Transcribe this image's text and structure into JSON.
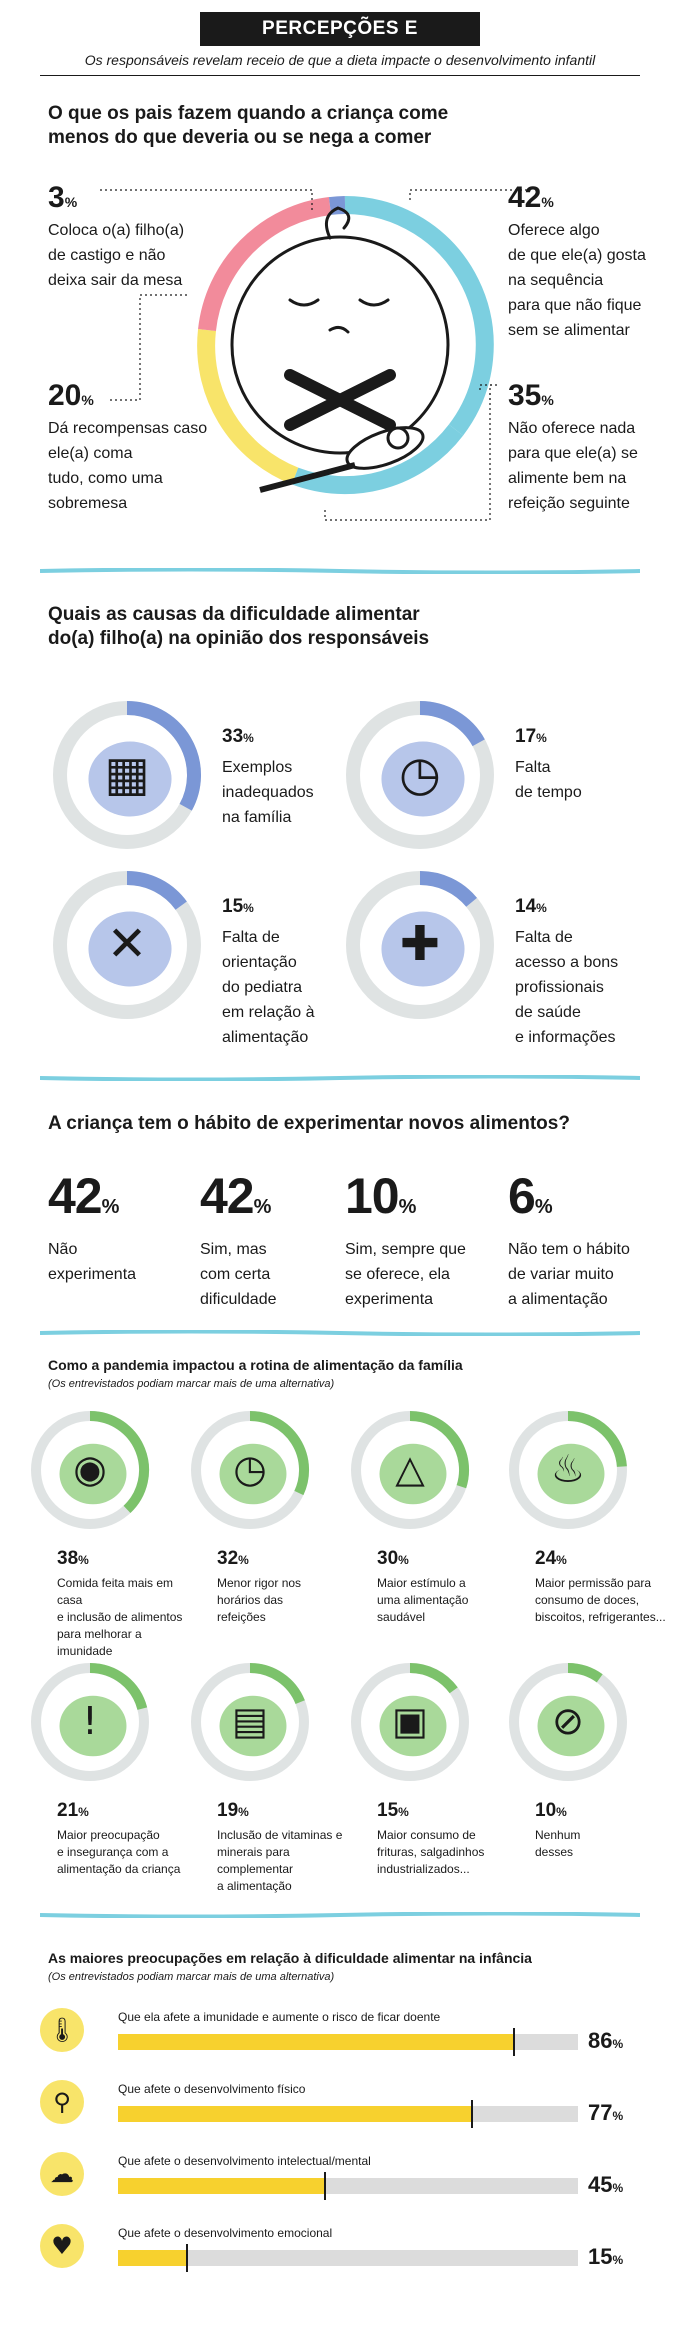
{
  "header": {
    "title": "PERCEPÇÕES E PREOCUPAÇÕES",
    "subtitle": "Os responsáveis revelam receio de que a dieta impacte o desenvolvimento infantil"
  },
  "section1": {
    "title_line1": "O que os pais fazem quando a criança come",
    "title_line2": "menos do que deveria ou se nega a comer",
    "items": [
      {
        "value": "3",
        "unit": "%",
        "lines": [
          "Coloca o(a) filho(a)",
          "de castigo e não",
          "deixa sair da mesa"
        ],
        "color": "#f28b9b"
      },
      {
        "value": "42",
        "unit": "%",
        "lines": [
          "Oferece algo",
          "de que ele(a) gosta",
          "na sequência",
          "para que não fique",
          "sem se alimentar"
        ],
        "color": "#7ccfe0"
      },
      {
        "value": "20",
        "unit": "%",
        "lines": [
          "Dá recompensas caso",
          "ele(a) coma",
          "tudo, como uma",
          "sobremesa"
        ],
        "color": "#f8e46a"
      },
      {
        "value": "35",
        "unit": "%",
        "lines": [
          "Não oferece nada",
          "para que ele(a) se",
          "alimente bem na",
          "refeição seguinte"
        ],
        "color": "#7ccfe0"
      }
    ]
  },
  "section2": {
    "title_line1": "Quais as causas da dificuldade alimentar",
    "title_line2": "do(a) filho(a) na opinião dos responsáveis",
    "items": [
      {
        "value": "33",
        "unit": "%",
        "fraction": 0.33,
        "icon": "picture-frame-icon",
        "lines": [
          "Exemplos",
          "inadequados",
          "na família"
        ]
      },
      {
        "value": "17",
        "unit": "%",
        "fraction": 0.17,
        "icon": "clock-icon",
        "lines": [
          "Falta",
          "de tempo"
        ]
      },
      {
        "value": "15",
        "unit": "%",
        "fraction": 0.15,
        "icon": "speech-bubble-x-icon",
        "lines": [
          "Falta de",
          "orientação",
          "do pediatra",
          "em relação à",
          "alimentação"
        ]
      },
      {
        "value": "14",
        "unit": "%",
        "fraction": 0.14,
        "icon": "medical-folder-icon",
        "lines": [
          "Falta de",
          "acesso a bons",
          "profissionais",
          "de saúde",
          "e informações"
        ]
      }
    ]
  },
  "section3": {
    "title": "A criança tem o hábito de experimentar novos alimentos?",
    "items": [
      {
        "value": "42",
        "unit": "%",
        "lines": [
          "Não",
          "experimenta"
        ]
      },
      {
        "value": "42",
        "unit": "%",
        "lines": [
          "Sim, mas",
          "com certa",
          "dificuldade"
        ]
      },
      {
        "value": "10",
        "unit": "%",
        "lines": [
          "Sim, sempre que",
          "se oferece, ela",
          "experimenta"
        ]
      },
      {
        "value": "6",
        "unit": "%",
        "lines": [
          "Não tem o hábito",
          "de variar muito",
          "a alimentação"
        ]
      }
    ]
  },
  "section4": {
    "title": "Como a pandemia impactou a rotina de alimentação da família",
    "note": "(Os entrevistados podiam marcar mais de uma alternativa)",
    "items": [
      {
        "value": "38",
        "unit": "%",
        "fraction": 0.38,
        "icon": "cutting-board-icon",
        "lines": [
          "Comida feita mais em casa",
          "e inclusão de alimentos",
          "para melhorar a imunidade"
        ]
      },
      {
        "value": "32",
        "unit": "%",
        "fraction": 0.32,
        "icon": "clock-icon",
        "lines": [
          "Menor rigor nos",
          "horários das",
          "refeições"
        ]
      },
      {
        "value": "30",
        "unit": "%",
        "fraction": 0.3,
        "icon": "food-pyramid-icon",
        "lines": [
          "Maior estímulo a",
          "uma alimentação",
          "saudável"
        ]
      },
      {
        "value": "24",
        "unit": "%",
        "fraction": 0.24,
        "icon": "cupcake-icon",
        "lines": [
          "Maior permissão para",
          "consumo de doces,",
          "biscoitos, refrigerantes..."
        ]
      },
      {
        "value": "21",
        "unit": "%",
        "fraction": 0.21,
        "icon": "warning-icon",
        "lines": [
          "Maior preocupação",
          "e insegurança com a",
          "alimentação da criança"
        ]
      },
      {
        "value": "19",
        "unit": "%",
        "fraction": 0.19,
        "icon": "pill-bottle-icon",
        "lines": [
          "Inclusão de vitaminas e",
          "minerais para complementar",
          "a alimentação"
        ]
      },
      {
        "value": "15",
        "unit": "%",
        "fraction": 0.15,
        "icon": "snack-bag-icon",
        "lines": [
          "Maior consumo de",
          "frituras, salgadinhos",
          "industrializados..."
        ]
      },
      {
        "value": "10",
        "unit": "%",
        "fraction": 0.1,
        "icon": "none-icon",
        "lines": [
          "Nenhum",
          "desses"
        ]
      }
    ]
  },
  "section5": {
    "title": "As maiores preocupações em relação à dificuldade alimentar na infância",
    "note": "(Os entrevistados podiam marcar mais de uma alternativa)",
    "items": [
      {
        "label": "Que ela afete a imunidade e aumente o risco de ficar doente",
        "value": "86",
        "unit": "%",
        "fraction": 0.86,
        "icon": "thermometer-icon"
      },
      {
        "label": "Que afete o desenvolvimento físico",
        "value": "77",
        "unit": "%",
        "fraction": 0.77,
        "icon": "bone-icon"
      },
      {
        "label": "Que afete o desenvolvimento intelectual/mental",
        "value": "45",
        "unit": "%",
        "fraction": 0.45,
        "icon": "brain-icon"
      },
      {
        "label": "Que afete o desenvolvimento emocional",
        "value": "15",
        "unit": "%",
        "fraction": 0.15,
        "icon": "broken-heart-icon"
      }
    ]
  },
  "colors": {
    "separator": "#7ccfe0",
    "blue_arc": "#7b97d6",
    "blue_blob": "#b7c6ea",
    "green_arc": "#7cc26b",
    "green_blob": "#a9d99a",
    "track": "#dfe3e3",
    "bar_fill": "#f7d12e",
    "bar_track": "#dcdcdc",
    "pink": "#f28b9b",
    "yellow": "#f8e46a",
    "cyan": "#7ccfe0"
  }
}
